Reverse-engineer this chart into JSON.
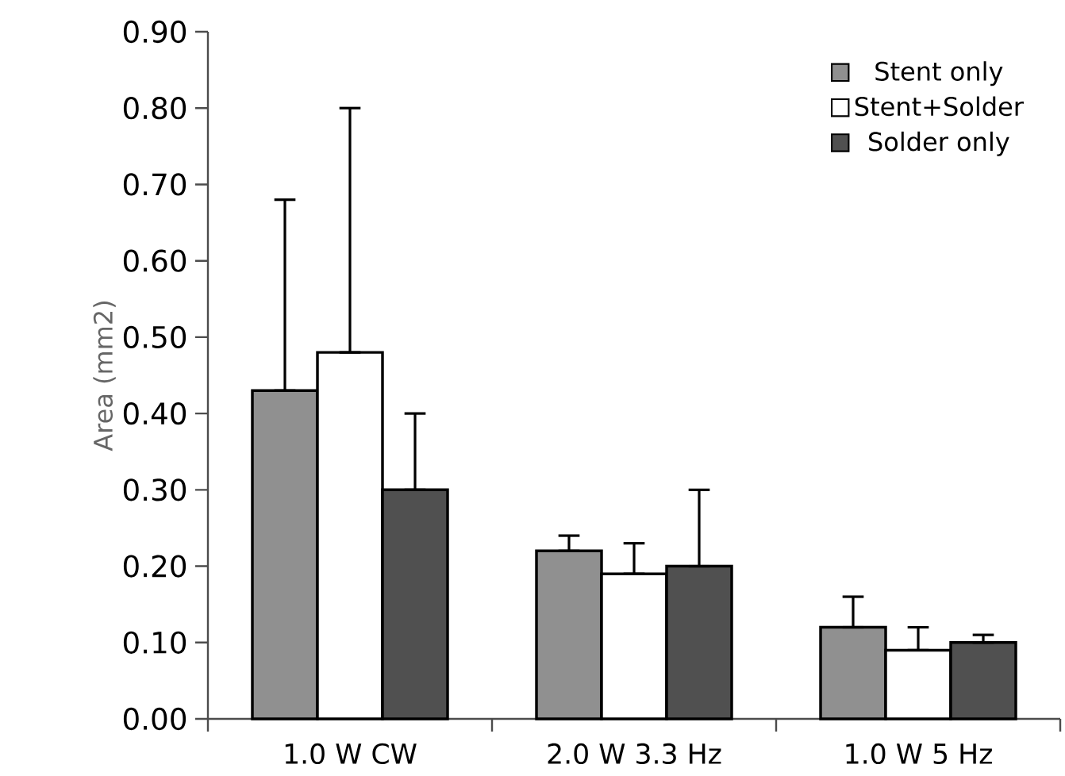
{
  "chart_data": {
    "type": "bar",
    "ylabel": "Area (mm2)",
    "categories": [
      "1.0 W CW",
      "2.0 W 3.3 Hz",
      "1.0 W 5 Hz"
    ],
    "series": [
      {
        "name": "Stent only",
        "color": "#909090",
        "values": [
          0.43,
          0.22,
          0.12
        ],
        "errors": [
          [
            0.43,
            0.68
          ],
          [
            0.22,
            0.24
          ],
          [
            0.12,
            0.16
          ]
        ]
      },
      {
        "name": "Stent+Solder",
        "color": "#ffffff",
        "values": [
          0.48,
          0.19,
          0.09
        ],
        "errors": [
          [
            0.48,
            0.8
          ],
          [
            0.19,
            0.23
          ],
          [
            0.09,
            0.12
          ]
        ]
      },
      {
        "name": "Solder only",
        "color": "#505050",
        "values": [
          0.3,
          0.2,
          0.1
        ],
        "errors": [
          [
            0.3,
            0.4
          ],
          [
            0.2,
            0.3
          ],
          [
            0.1,
            0.11
          ]
        ]
      }
    ],
    "ylim": [
      0,
      0.9
    ],
    "yticks": [
      {
        "value": 0,
        "label": "0.00"
      },
      {
        "value": 0.1,
        "label": "0.10"
      },
      {
        "value": 0.2,
        "label": "0.20"
      },
      {
        "value": 0.3,
        "label": "0.30"
      },
      {
        "value": 0.4,
        "label": "0.40"
      },
      {
        "value": 0.5,
        "label": "0.50"
      },
      {
        "value": 0.6,
        "label": "0.60"
      },
      {
        "value": 0.7,
        "label": "0.70"
      },
      {
        "value": 0.8,
        "label": "0.80"
      },
      {
        "value": 0.9,
        "label": "0.90"
      }
    ],
    "grid": false,
    "legend": "top right"
  }
}
